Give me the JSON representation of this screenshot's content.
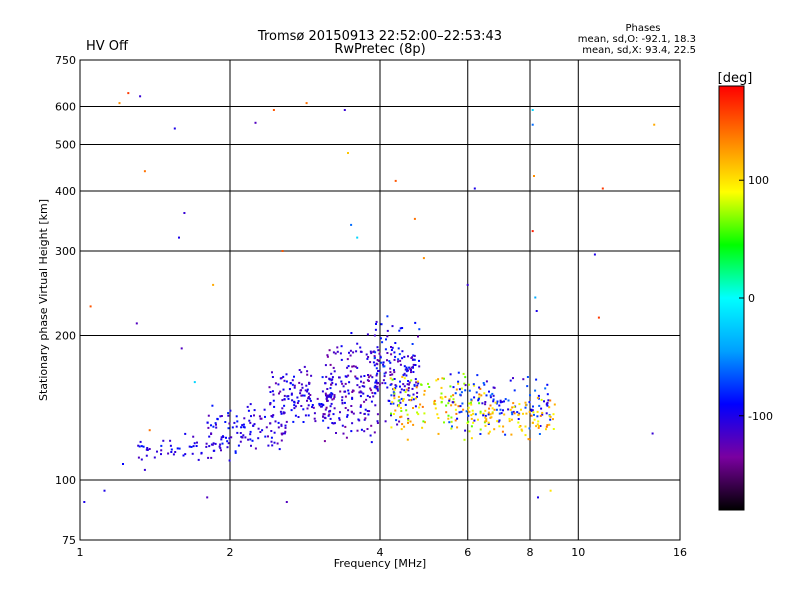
{
  "header": {
    "status": "HV Off",
    "status_color": "#cc0000",
    "title_line1": "Tromsø 20150913 22:52:00–22:53:43",
    "title_line2": "RwPretec (8p)"
  },
  "phases": {
    "title": "Phases",
    "line_o": "mean, sd,O: -92.1, 18.3",
    "line_x": "mean, sd,X:  93.4, 22.5"
  },
  "colorbar": {
    "label": "[deg]",
    "ticks": [
      {
        "label": "100",
        "value": 100
      },
      {
        "label": "0",
        "value": 0
      },
      {
        "label": "-100",
        "value": -100
      }
    ],
    "range": [
      -180,
      180
    ],
    "colors": [
      "#000000",
      "#7a00a0",
      "#0000ff",
      "#00a0ff",
      "#00ffff",
      "#00ff00",
      "#ffff00",
      "#ff8000",
      "#ff0000"
    ]
  },
  "chart_data": {
    "type": "scatter",
    "title": "Tromsø 20150913 22:52:00–22:53:43",
    "subtitle": "RwPretec (8p)",
    "xlabel": "Frequency [MHz]",
    "ylabel": "Stationary phase Virtual Height [km]",
    "xscale": "log",
    "yscale": "log",
    "xlim": [
      1,
      16
    ],
    "ylim": [
      75,
      750
    ],
    "xticks": [
      1,
      2,
      4,
      6,
      8,
      10,
      16
    ],
    "xtick_labels": [
      "1",
      "2",
      "4",
      "6",
      "8",
      "10",
      "16"
    ],
    "yticks": [
      75,
      100,
      200,
      300,
      400,
      500,
      600,
      750
    ],
    "ytick_labels": [
      "75",
      "100",
      "200",
      "300",
      "400",
      "500",
      "600",
      "750"
    ],
    "grid": true,
    "color_variable": "phase [deg]",
    "clusters": [
      {
        "x_range": [
          1.3,
          2.0
        ],
        "y_range": [
          108,
          125
        ],
        "phase": [
          -120,
          -80
        ],
        "count": 60
      },
      {
        "x_range": [
          1.8,
          2.6
        ],
        "y_range": [
          112,
          145
        ],
        "phase": [
          -130,
          -80
        ],
        "count": 110
      },
      {
        "x_range": [
          2.4,
          3.2
        ],
        "y_range": [
          125,
          175
        ],
        "phase": [
          -130,
          -80
        ],
        "count": 140
      },
      {
        "x_range": [
          3.1,
          4.0
        ],
        "y_range": [
          118,
          205
        ],
        "phase": [
          -140,
          -90
        ],
        "count": 190
      },
      {
        "x_range": [
          3.9,
          4.8
        ],
        "y_range": [
          125,
          225
        ],
        "phase": [
          -130,
          -70
        ],
        "count": 170
      },
      {
        "x_range": [
          4.2,
          6.5
        ],
        "y_range": [
          120,
          170
        ],
        "phase": [
          60,
          140
        ],
        "count": 140
      },
      {
        "x_range": [
          5.5,
          8.8
        ],
        "y_range": [
          120,
          170
        ],
        "phase": [
          -120,
          -60
        ],
        "count": 120
      },
      {
        "x_range": [
          6.5,
          9.0
        ],
        "y_range": [
          120,
          150
        ],
        "phase": [
          80,
          140
        ],
        "count": 80
      }
    ],
    "points": [
      {
        "x": 1.05,
        "y": 230,
        "phase": 150
      },
      {
        "x": 1.2,
        "y": 610,
        "phase": 130
      },
      {
        "x": 1.25,
        "y": 640,
        "phase": 160
      },
      {
        "x": 1.32,
        "y": 630,
        "phase": -110
      },
      {
        "x": 1.35,
        "y": 440,
        "phase": 140
      },
      {
        "x": 1.55,
        "y": 540,
        "phase": -100
      },
      {
        "x": 1.62,
        "y": 360,
        "phase": -110
      },
      {
        "x": 1.58,
        "y": 320,
        "phase": -100
      },
      {
        "x": 1.85,
        "y": 255,
        "phase": 120
      },
      {
        "x": 1.3,
        "y": 212,
        "phase": -120
      },
      {
        "x": 2.45,
        "y": 590,
        "phase": 150
      },
      {
        "x": 2.85,
        "y": 610,
        "phase": 140
      },
      {
        "x": 2.25,
        "y": 555,
        "phase": -120
      },
      {
        "x": 2.55,
        "y": 300,
        "phase": 150
      },
      {
        "x": 3.4,
        "y": 590,
        "phase": -110
      },
      {
        "x": 3.45,
        "y": 480,
        "phase": 110
      },
      {
        "x": 3.5,
        "y": 340,
        "phase": -60
      },
      {
        "x": 3.6,
        "y": 320,
        "phase": -20
      },
      {
        "x": 4.3,
        "y": 420,
        "phase": 150
      },
      {
        "x": 4.7,
        "y": 350,
        "phase": 140
      },
      {
        "x": 4.9,
        "y": 290,
        "phase": 130
      },
      {
        "x": 6.2,
        "y": 405,
        "phase": -100
      },
      {
        "x": 6.0,
        "y": 255,
        "phase": -110
      },
      {
        "x": 8.1,
        "y": 590,
        "phase": -20
      },
      {
        "x": 8.1,
        "y": 550,
        "phase": -60
      },
      {
        "x": 8.15,
        "y": 430,
        "phase": 130
      },
      {
        "x": 8.1,
        "y": 330,
        "phase": 170
      },
      {
        "x": 8.2,
        "y": 240,
        "phase": -40
      },
      {
        "x": 8.25,
        "y": 225,
        "phase": -100
      },
      {
        "x": 11.2,
        "y": 405,
        "phase": 160
      },
      {
        "x": 10.8,
        "y": 295,
        "phase": -100
      },
      {
        "x": 11.0,
        "y": 218,
        "phase": 160
      },
      {
        "x": 14.2,
        "y": 550,
        "phase": 120
      },
      {
        "x": 14.1,
        "y": 125,
        "phase": -110
      },
      {
        "x": 1.02,
        "y": 90,
        "phase": -100
      },
      {
        "x": 1.12,
        "y": 95,
        "phase": -100
      },
      {
        "x": 1.22,
        "y": 108,
        "phase": -90
      },
      {
        "x": 1.35,
        "y": 105,
        "phase": -110
      },
      {
        "x": 1.8,
        "y": 92,
        "phase": -120
      },
      {
        "x": 2.6,
        "y": 90,
        "phase": -120
      },
      {
        "x": 1.38,
        "y": 127,
        "phase": 140
      },
      {
        "x": 1.6,
        "y": 188,
        "phase": -120
      },
      {
        "x": 1.7,
        "y": 160,
        "phase": -20
      },
      {
        "x": 8.3,
        "y": 92,
        "phase": -100
      },
      {
        "x": 8.8,
        "y": 95,
        "phase": 100
      }
    ]
  }
}
